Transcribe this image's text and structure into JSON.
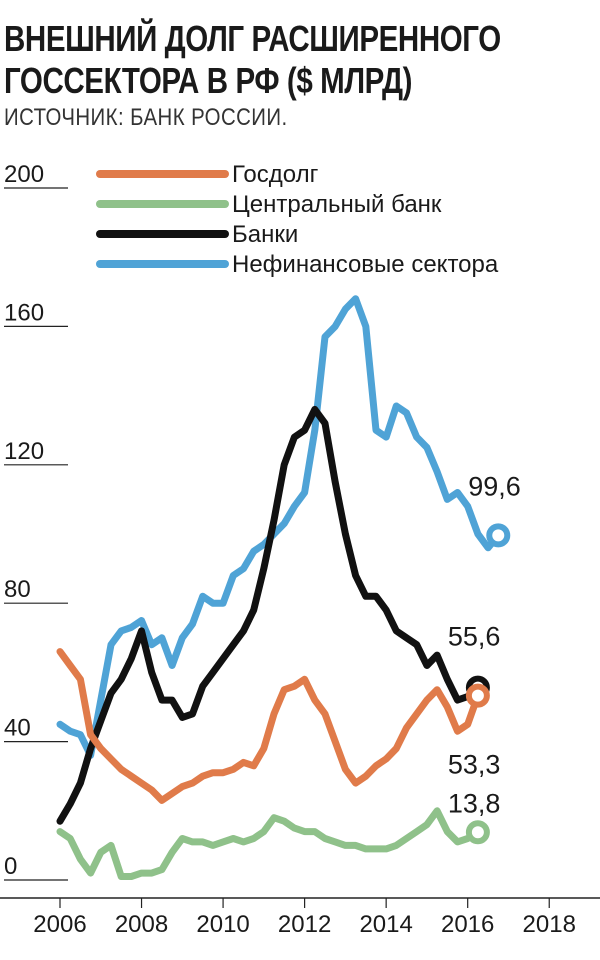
{
  "chart_data": {
    "type": "line",
    "title_line1": "ВНЕШНИЙ ДОЛГ РАСШИРЕННОГО",
    "title_line2": "ГОССЕКТОРА В РФ ($ МЛРД)",
    "source": "ИСТОЧНИК: БАНК РОССИИ.",
    "ylim": [
      0,
      200
    ],
    "xlim": [
      2006,
      2019
    ],
    "y_ticks": [
      {
        "value": 0,
        "label": "0"
      },
      {
        "value": 40,
        "label": "40"
      },
      {
        "value": 80,
        "label": "80"
      },
      {
        "value": 120,
        "label": "120"
      },
      {
        "value": 160,
        "label": "160"
      },
      {
        "value": 200,
        "label": "200"
      }
    ],
    "x_ticks": [
      {
        "value": 2006,
        "label": "2006"
      },
      {
        "value": 2008,
        "label": "2008"
      },
      {
        "value": 2010,
        "label": "2010"
      },
      {
        "value": 2012,
        "label": "2012"
      },
      {
        "value": 2014,
        "label": "2014"
      },
      {
        "value": 2016,
        "label": "2016"
      },
      {
        "value": 2018,
        "label": "2018"
      }
    ],
    "series": [
      {
        "name": "Нефинансовые сектора",
        "color": "#4fa3d6",
        "end_label": "99,6",
        "points": [
          [
            2006.0,
            45
          ],
          [
            2006.25,
            43
          ],
          [
            2006.5,
            42
          ],
          [
            2006.75,
            36
          ],
          [
            2007.0,
            52
          ],
          [
            2007.25,
            68
          ],
          [
            2007.5,
            72
          ],
          [
            2007.75,
            73
          ],
          [
            2008.0,
            75
          ],
          [
            2008.25,
            68
          ],
          [
            2008.5,
            70
          ],
          [
            2008.75,
            62
          ],
          [
            2009.0,
            70
          ],
          [
            2009.25,
            74
          ],
          [
            2009.5,
            82
          ],
          [
            2009.75,
            80
          ],
          [
            2010.0,
            80
          ],
          [
            2010.25,
            88
          ],
          [
            2010.5,
            90
          ],
          [
            2010.75,
            95
          ],
          [
            2011.0,
            97
          ],
          [
            2011.25,
            100
          ],
          [
            2011.5,
            103
          ],
          [
            2011.75,
            108
          ],
          [
            2012.0,
            112
          ],
          [
            2012.25,
            130
          ],
          [
            2012.5,
            157
          ],
          [
            2012.75,
            160
          ],
          [
            2013.0,
            165
          ],
          [
            2013.25,
            168
          ],
          [
            2013.5,
            160
          ],
          [
            2013.75,
            130
          ],
          [
            2014.0,
            128
          ],
          [
            2014.25,
            137
          ],
          [
            2014.5,
            135
          ],
          [
            2014.75,
            128
          ],
          [
            2015.0,
            125
          ],
          [
            2015.25,
            118
          ],
          [
            2015.5,
            110
          ],
          [
            2015.75,
            112
          ],
          [
            2016.0,
            108
          ],
          [
            2016.25,
            100
          ],
          [
            2016.5,
            96
          ],
          [
            2016.75,
            99.6
          ]
        ]
      },
      {
        "name": "Банки",
        "color": "#111111",
        "end_label": "55,6",
        "points": [
          [
            2006.0,
            17
          ],
          [
            2006.25,
            22
          ],
          [
            2006.5,
            28
          ],
          [
            2006.75,
            38
          ],
          [
            2007.0,
            46
          ],
          [
            2007.25,
            54
          ],
          [
            2007.5,
            58
          ],
          [
            2007.75,
            64
          ],
          [
            2008.0,
            72
          ],
          [
            2008.25,
            60
          ],
          [
            2008.5,
            52
          ],
          [
            2008.75,
            52
          ],
          [
            2009.0,
            47
          ],
          [
            2009.25,
            48
          ],
          [
            2009.5,
            56
          ],
          [
            2009.75,
            60
          ],
          [
            2010.0,
            64
          ],
          [
            2010.25,
            68
          ],
          [
            2010.5,
            72
          ],
          [
            2010.75,
            78
          ],
          [
            2011.0,
            90
          ],
          [
            2011.25,
            104
          ],
          [
            2011.5,
            120
          ],
          [
            2011.75,
            128
          ],
          [
            2012.0,
            130
          ],
          [
            2012.25,
            136
          ],
          [
            2012.5,
            132
          ],
          [
            2012.75,
            115
          ],
          [
            2013.0,
            100
          ],
          [
            2013.25,
            88
          ],
          [
            2013.5,
            82
          ],
          [
            2013.75,
            82
          ],
          [
            2014.0,
            78
          ],
          [
            2014.25,
            72
          ],
          [
            2014.5,
            70
          ],
          [
            2014.75,
            68
          ],
          [
            2015.0,
            62
          ],
          [
            2015.25,
            65
          ],
          [
            2015.5,
            58
          ],
          [
            2015.75,
            52
          ],
          [
            2016.0,
            53
          ],
          [
            2016.25,
            55.6
          ]
        ]
      },
      {
        "name": "Госдолг",
        "color": "#e07b4a",
        "end_label": "53,3",
        "points": [
          [
            2006.0,
            66
          ],
          [
            2006.25,
            62
          ],
          [
            2006.5,
            58
          ],
          [
            2006.75,
            42
          ],
          [
            2007.0,
            38
          ],
          [
            2007.25,
            35
          ],
          [
            2007.5,
            32
          ],
          [
            2007.75,
            30
          ],
          [
            2008.0,
            28
          ],
          [
            2008.25,
            26
          ],
          [
            2008.5,
            23
          ],
          [
            2008.75,
            25
          ],
          [
            2009.0,
            27
          ],
          [
            2009.25,
            28
          ],
          [
            2009.5,
            30
          ],
          [
            2009.75,
            31
          ],
          [
            2010.0,
            31
          ],
          [
            2010.25,
            32
          ],
          [
            2010.5,
            34
          ],
          [
            2010.75,
            33
          ],
          [
            2011.0,
            38
          ],
          [
            2011.25,
            48
          ],
          [
            2011.5,
            55
          ],
          [
            2011.75,
            56
          ],
          [
            2012.0,
            58
          ],
          [
            2012.25,
            52
          ],
          [
            2012.5,
            48
          ],
          [
            2012.75,
            40
          ],
          [
            2013.0,
            32
          ],
          [
            2013.25,
            28
          ],
          [
            2013.5,
            30
          ],
          [
            2013.75,
            33
          ],
          [
            2014.0,
            35
          ],
          [
            2014.25,
            38
          ],
          [
            2014.5,
            44
          ],
          [
            2014.75,
            48
          ],
          [
            2015.0,
            52
          ],
          [
            2015.25,
            55
          ],
          [
            2015.5,
            50
          ],
          [
            2015.75,
            43
          ],
          [
            2016.0,
            45
          ],
          [
            2016.25,
            53.3
          ]
        ]
      },
      {
        "name": "Центральный банк",
        "color": "#8fc18a",
        "end_label": "13,8",
        "points": [
          [
            2006.0,
            14
          ],
          [
            2006.25,
            12
          ],
          [
            2006.5,
            6
          ],
          [
            2006.75,
            2
          ],
          [
            2007.0,
            8
          ],
          [
            2007.25,
            10
          ],
          [
            2007.5,
            1
          ],
          [
            2007.75,
            1
          ],
          [
            2008.0,
            2
          ],
          [
            2008.25,
            2
          ],
          [
            2008.5,
            3
          ],
          [
            2008.75,
            8
          ],
          [
            2009.0,
            12
          ],
          [
            2009.25,
            11
          ],
          [
            2009.5,
            11
          ],
          [
            2009.75,
            10
          ],
          [
            2010.0,
            11
          ],
          [
            2010.25,
            12
          ],
          [
            2010.5,
            11
          ],
          [
            2010.75,
            12
          ],
          [
            2011.0,
            14
          ],
          [
            2011.25,
            18
          ],
          [
            2011.5,
            17
          ],
          [
            2011.75,
            15
          ],
          [
            2012.0,
            14
          ],
          [
            2012.25,
            14
          ],
          [
            2012.5,
            12
          ],
          [
            2012.75,
            11
          ],
          [
            2013.0,
            10
          ],
          [
            2013.25,
            10
          ],
          [
            2013.5,
            9
          ],
          [
            2013.75,
            9
          ],
          [
            2014.0,
            9
          ],
          [
            2014.25,
            10
          ],
          [
            2014.5,
            12
          ],
          [
            2014.75,
            14
          ],
          [
            2015.0,
            16
          ],
          [
            2015.25,
            20
          ],
          [
            2015.5,
            14
          ],
          [
            2015.75,
            11
          ],
          [
            2016.0,
            12
          ],
          [
            2016.25,
            13.8
          ]
        ]
      }
    ],
    "legend": [
      {
        "label": "Госдолг",
        "color": "#e07b4a"
      },
      {
        "label": "Центральный банк",
        "color": "#8fc18a"
      },
      {
        "label": "Банки",
        "color": "#111111"
      },
      {
        "label": "Нефинансовые сектора",
        "color": "#4fa3d6"
      }
    ]
  }
}
